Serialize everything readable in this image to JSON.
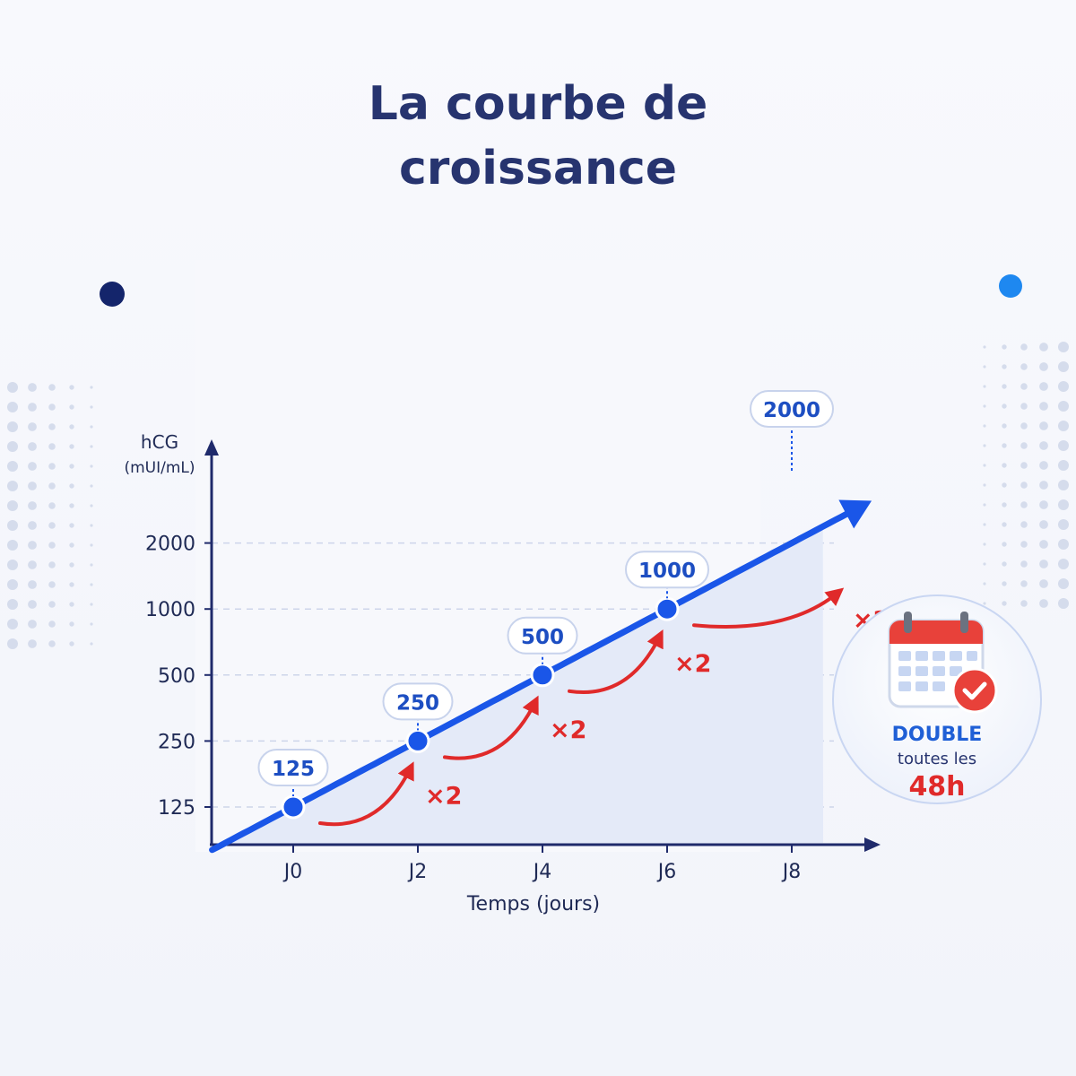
{
  "title_line1": "La courbe de",
  "title_line2": "croissance",
  "chart_data": {
    "type": "line",
    "title": "La courbe de croissance",
    "ylabel_line1": "hCG",
    "ylabel_line2": "(mUI/mL)",
    "xlabel": "Temps (jours)",
    "x_ticks": [
      "J0",
      "J2",
      "J4",
      "J6",
      "J8"
    ],
    "y_ticks": [
      125,
      250,
      500,
      1000,
      2000
    ],
    "y_scale": "log2",
    "grid": "horizontal dashed",
    "points": [
      {
        "day": 0,
        "value": 125,
        "label": "125"
      },
      {
        "day": 2,
        "value": 250,
        "label": "250"
      },
      {
        "day": 4,
        "value": 500,
        "label": "500"
      },
      {
        "day": 6,
        "value": 1000,
        "label": "1000"
      },
      {
        "day": 8,
        "value": 2000,
        "label": "2000"
      }
    ],
    "multiplier_label": "×2",
    "colors": {
      "line": "#1a56e8",
      "multiplier": "#e02a2a",
      "axis": "#1f2a6b",
      "fill": "#e4eaf8"
    }
  },
  "badge": {
    "icon": "calendar-check-icon",
    "line1": "DOUBLE",
    "line2": "toutes les",
    "line3": "48h"
  }
}
